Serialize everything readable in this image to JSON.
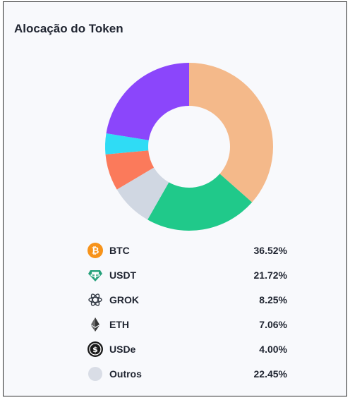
{
  "card": {
    "title": "Alocação do Token"
  },
  "chart_data": {
    "type": "pie",
    "subtype": "donut",
    "title": "Alocação do Token",
    "legend_position": "bottom",
    "slices": [
      {
        "label": "BTC",
        "value": 36.52,
        "value_label": "36.52%",
        "color": "#f4b98a",
        "icon": "bitcoin-icon"
      },
      {
        "label": "USDT",
        "value": 21.72,
        "value_label": "21.72%",
        "color": "#20c98a",
        "icon": "tether-icon"
      },
      {
        "label": "GROK",
        "value": 8.25,
        "value_label": "8.25%",
        "color": "#d0d7e2",
        "icon": "grok-icon"
      },
      {
        "label": "ETH",
        "value": 7.06,
        "value_label": "7.06%",
        "color": "#fb7a5b",
        "icon": "ethereum-icon"
      },
      {
        "label": "USDe",
        "value": 4.0,
        "value_label": "4.00%",
        "color": "#2fdcf5",
        "icon": "usde-icon"
      },
      {
        "label": "Outros",
        "value": 22.45,
        "value_label": "22.45%",
        "color": "#8b46fb",
        "icon": "others-icon"
      }
    ]
  }
}
